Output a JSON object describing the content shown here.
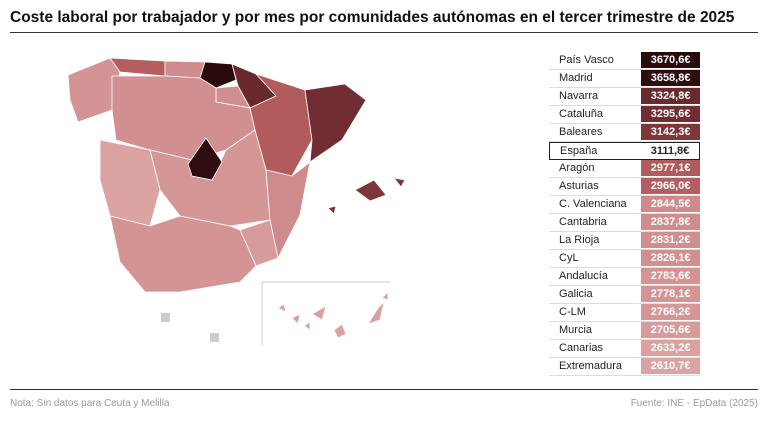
{
  "header": {
    "title": "Coste laboral por trabajador y por mes por comunidades autónomas en el tercer trimestre de 2025"
  },
  "table": {
    "rows": [
      {
        "name": "País Vasco",
        "value": "3670,6€",
        "color": "#2a0a0d"
      },
      {
        "name": "Madrid",
        "value": "3658,8€",
        "color": "#2e0c10"
      },
      {
        "name": "Navarra",
        "value": "3324,8€",
        "color": "#6a292d"
      },
      {
        "name": "Cataluña",
        "value": "3295,6€",
        "color": "#712d31"
      },
      {
        "name": "Baleares",
        "value": "3142,3€",
        "color": "#7f3639"
      },
      {
        "name": "España",
        "value": "3111,8€",
        "color": "#ffffff",
        "highlight": true
      },
      {
        "name": "Aragón",
        "value": "2977,1€",
        "color": "#b25b5d"
      },
      {
        "name": "Asturias",
        "value": "2966,0€",
        "color": "#b45e60"
      },
      {
        "name": "C. Valenciana",
        "value": "2844,5€",
        "color": "#cf8a8b"
      },
      {
        "name": "Cantabria",
        "value": "2837,8€",
        "color": "#d08c8d"
      },
      {
        "name": "La Rioja",
        "value": "2831,2€",
        "color": "#d18e8f"
      },
      {
        "name": "CyL",
        "value": "2826,1€",
        "color": "#d28f90"
      },
      {
        "name": "Andalucía",
        "value": "2783,6€",
        "color": "#d49494"
      },
      {
        "name": "Galicia",
        "value": "2778,1€",
        "color": "#d49495"
      },
      {
        "name": "C-LM",
        "value": "2766,2€",
        "color": "#d59696"
      },
      {
        "name": "Murcia",
        "value": "2705,6€",
        "color": "#d89b9b"
      },
      {
        "name": "Canarias",
        "value": "2633,2€",
        "color": "#dba1a1"
      },
      {
        "name": "Extremadura",
        "value": "2610,7€",
        "color": "#dca3a3"
      }
    ]
  },
  "footer": {
    "note": "Nota: Sin datos para Ceuta y Melilla",
    "source": "Fuente: INE - EpData (2025)"
  }
}
